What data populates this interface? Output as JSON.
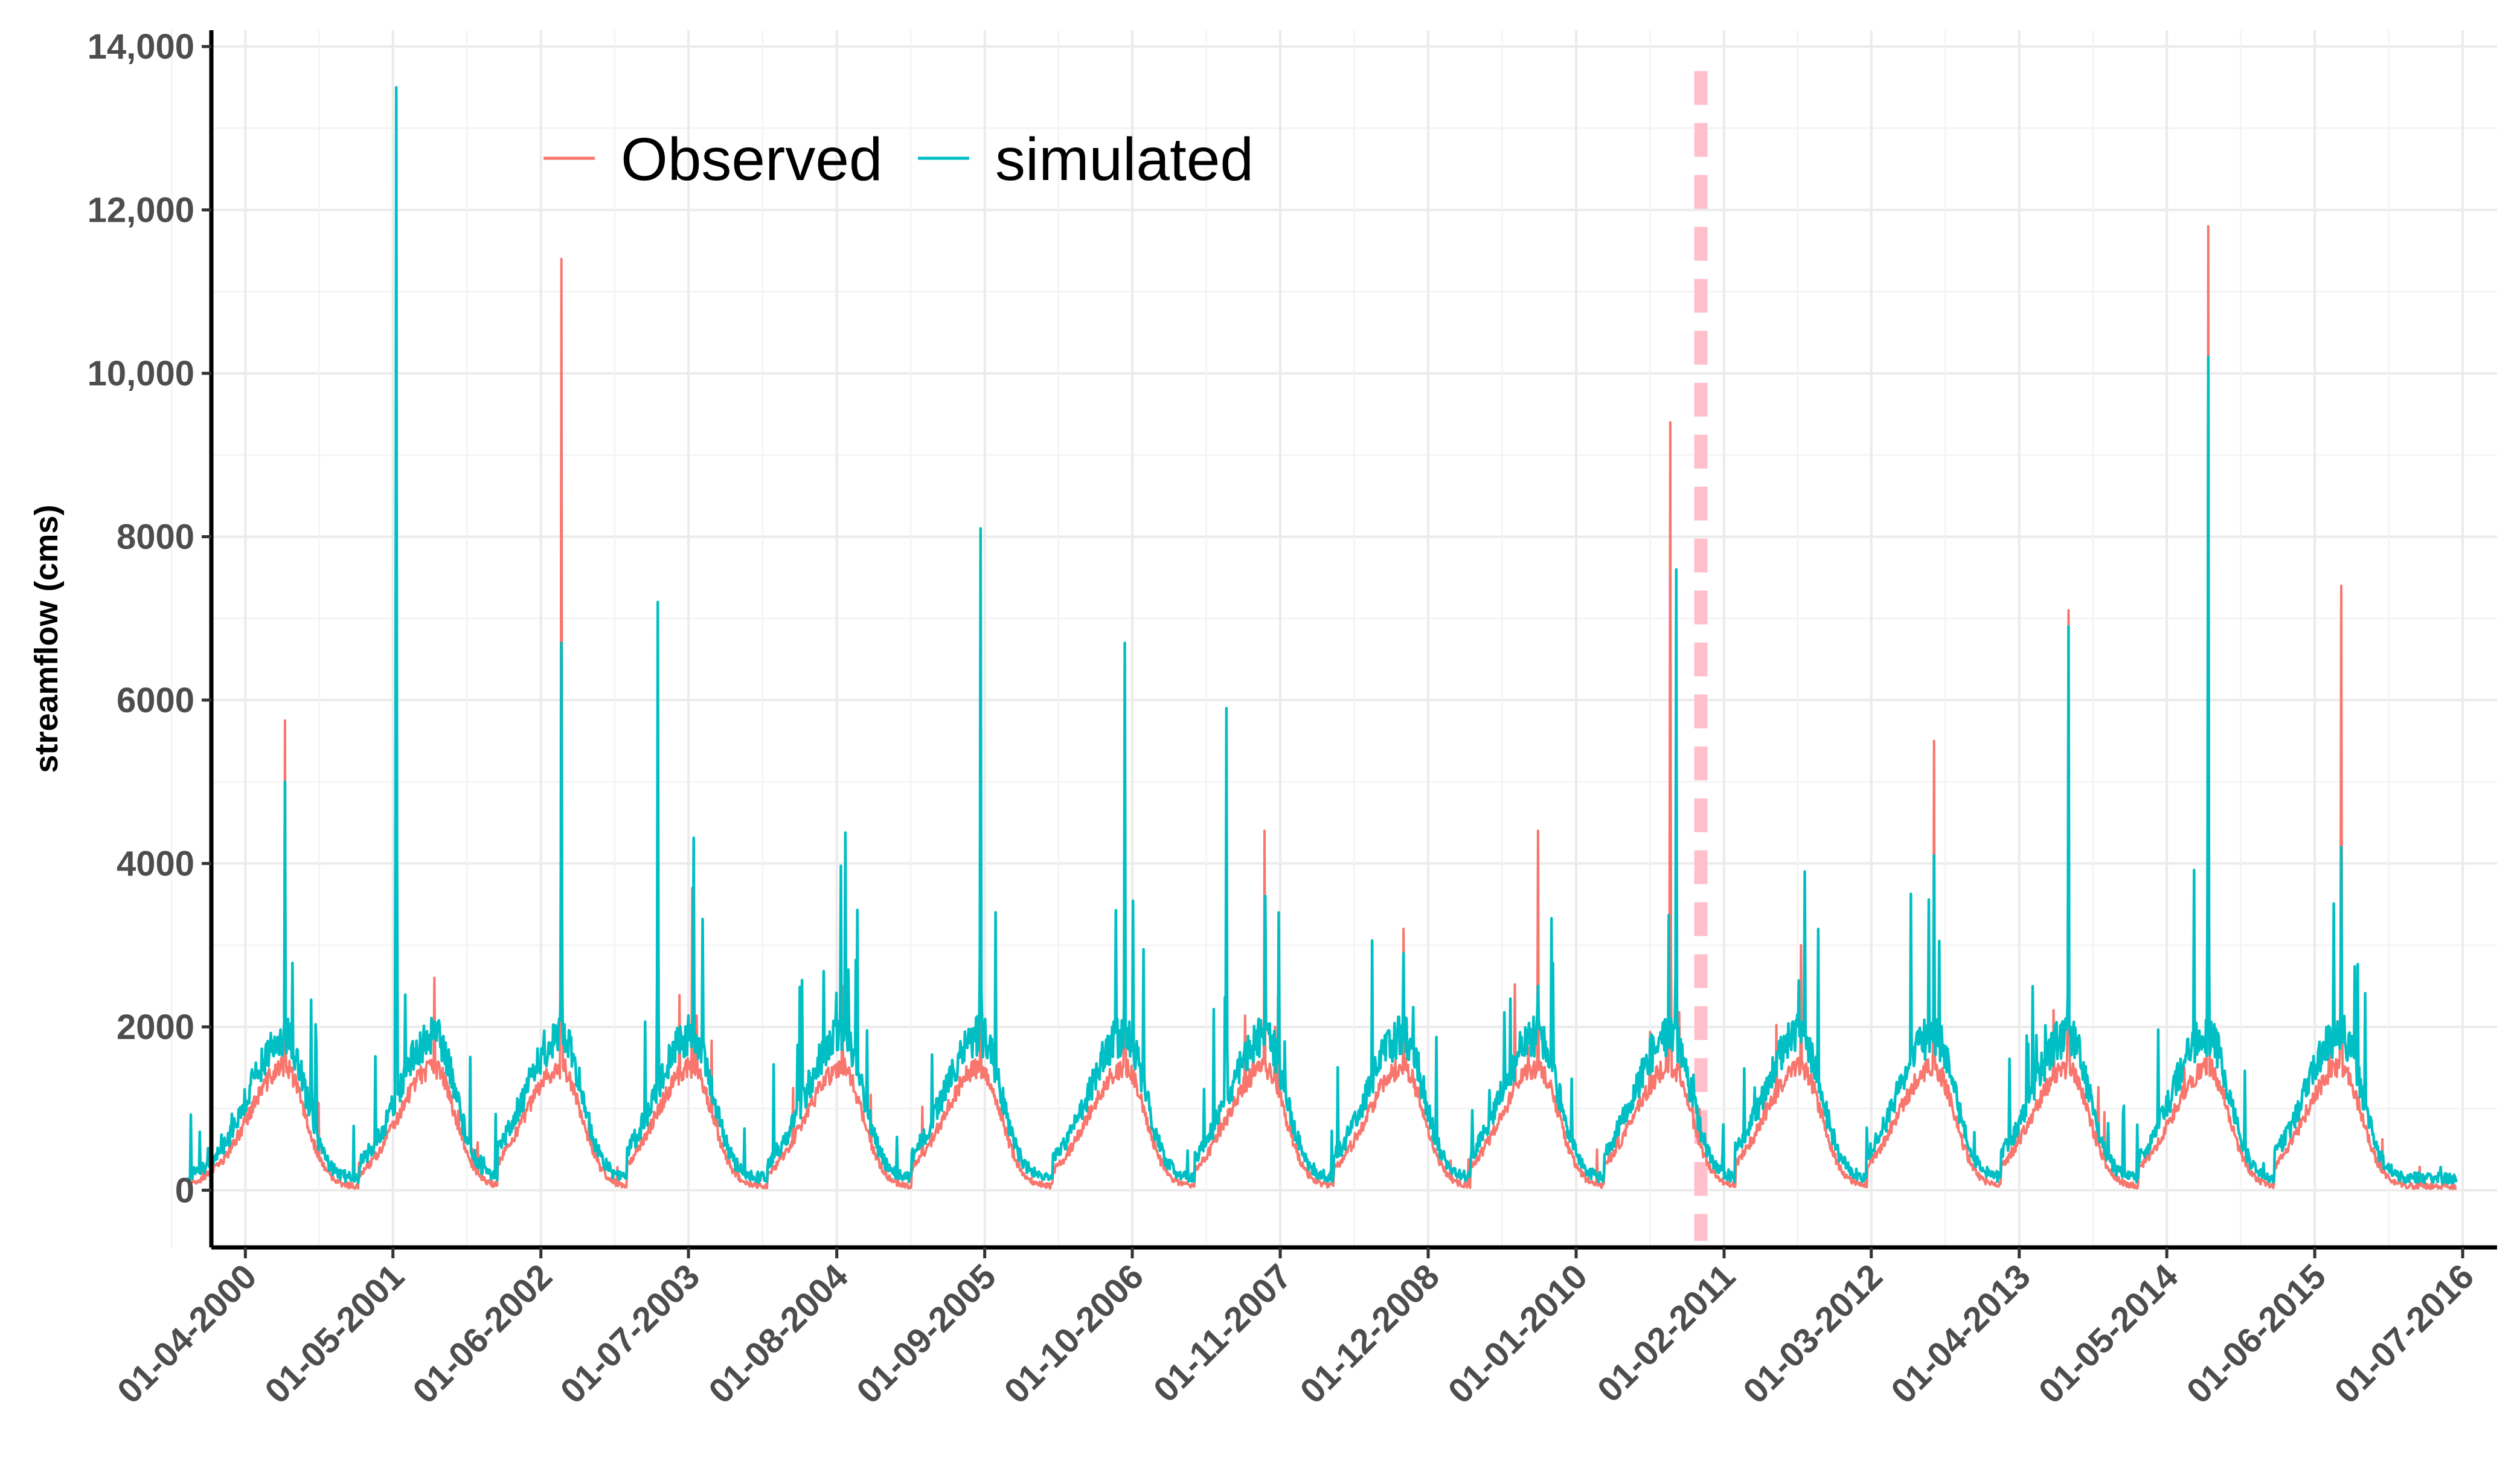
{
  "chart_data": {
    "type": "line",
    "title": "",
    "xlabel": "",
    "ylabel": "streamflow (cms)",
    "ylim": [
      -700,
      14200
    ],
    "xlim": [
      "2000-01-01",
      "2016-10-01"
    ],
    "y_ticks": [
      0,
      2000,
      4000,
      6000,
      8000,
      10000,
      12000,
      14000
    ],
    "y_tick_labels": [
      "0",
      "2000",
      "4000",
      "6000",
      "8000",
      "10,000",
      "12,000",
      "14,000"
    ],
    "x_ticks": [
      "2000-04-01",
      "2001-05-01",
      "2002-06-01",
      "2003-07-01",
      "2004-08-01",
      "2005-09-01",
      "2006-10-01",
      "2007-11-01",
      "2008-12-01",
      "2010-01-01",
      "2011-02-01",
      "2012-03-01",
      "2013-04-01",
      "2014-05-01",
      "2015-06-01",
      "2016-07-01"
    ],
    "x_tick_labels": [
      "01-04-2000",
      "01-05-2001",
      "01-06-2002",
      "01-07-2003",
      "01-08-2004",
      "01-09-2005",
      "01-10-2006",
      "01-11-2007",
      "01-12-2008",
      "01-01-2010",
      "01-02-2011",
      "01-03-2012",
      "01-04-2013",
      "01-05-2014",
      "01-06-2015",
      "01-07-2016"
    ],
    "grid": true,
    "legend": {
      "placement": "top-left-inside"
    },
    "reference_line": {
      "x": "2010-12-01",
      "style": "dashed",
      "color": "#ffc0cb"
    },
    "data_range": {
      "start": "1999-11-01",
      "end": "2016-06-15"
    },
    "series": [
      {
        "name": "Observed",
        "color": "#f8766d",
        "seasonal_peaks": [
          {
            "date": "2000-07-15",
            "value": 5750
          },
          {
            "date": "2001-08-20",
            "value": 2600
          },
          {
            "date": "2002-07-25",
            "value": 11400
          },
          {
            "date": "2003-07-10",
            "value": 3700
          },
          {
            "date": "2004-08-15",
            "value": 2500
          },
          {
            "date": "2005-08-20",
            "value": 3700
          },
          {
            "date": "2006-09-10",
            "value": 6600
          },
          {
            "date": "2007-09-20",
            "value": 4400
          },
          {
            "date": "2008-09-25",
            "value": 3200
          },
          {
            "date": "2009-09-20",
            "value": 4400
          },
          {
            "date": "2010-09-10",
            "value": 9400
          },
          {
            "date": "2011-08-25",
            "value": 3000
          },
          {
            "date": "2012-08-15",
            "value": 5500
          },
          {
            "date": "2013-08-10",
            "value": 7100
          },
          {
            "date": "2014-08-20",
            "value": 11800
          },
          {
            "date": "2015-08-10",
            "value": 7400
          }
        ],
        "typical_low": 50
      },
      {
        "name": "simulated",
        "color": "#00bfc4",
        "seasonal_peaks": [
          {
            "date": "2000-07-15",
            "value": 5000
          },
          {
            "date": "2001-05-10",
            "value": 13500
          },
          {
            "date": "2002-07-25",
            "value": 6700
          },
          {
            "date": "2003-04-10",
            "value": 7200
          },
          {
            "date": "2004-09-01",
            "value": 2700
          },
          {
            "date": "2005-08-20",
            "value": 8100
          },
          {
            "date": "2006-09-10",
            "value": 6700
          },
          {
            "date": "2007-06-10",
            "value": 5900
          },
          {
            "date": "2008-09-25",
            "value": 2900
          },
          {
            "date": "2009-09-20",
            "value": 2500
          },
          {
            "date": "2010-09-25",
            "value": 7600
          },
          {
            "date": "2011-09-05",
            "value": 3900
          },
          {
            "date": "2012-08-15",
            "value": 4100
          },
          {
            "date": "2013-08-10",
            "value": 6900
          },
          {
            "date": "2014-08-20",
            "value": 10200
          },
          {
            "date": "2015-08-10",
            "value": 4200
          }
        ],
        "typical_low": 150
      }
    ]
  }
}
